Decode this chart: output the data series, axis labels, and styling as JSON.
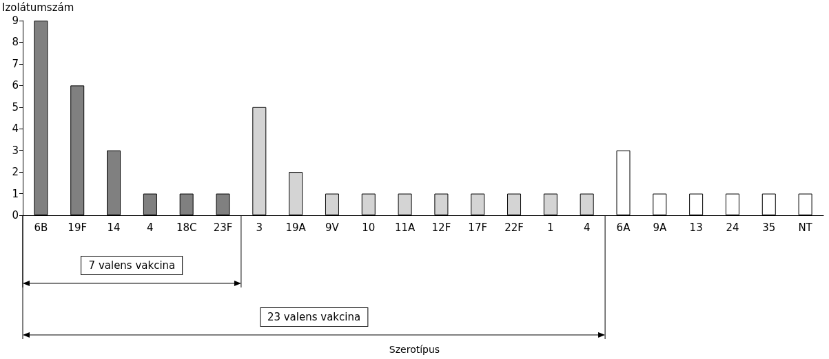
{
  "chart_data": {
    "type": "bar",
    "ylabel": "Izolátumszám",
    "categories": [
      "6B",
      "19F",
      "14",
      "4",
      "18C",
      "23F",
      "3",
      "19A",
      "9V",
      "10",
      "11A",
      "12F",
      "17F",
      "22F",
      "1",
      "4",
      "6A",
      "9A",
      "13",
      "24",
      "35",
      "NT"
    ],
    "values": [
      9,
      6,
      3,
      1,
      1,
      1,
      5,
      2,
      1,
      1,
      1,
      1,
      1,
      1,
      1,
      1,
      3,
      1,
      1,
      1,
      1,
      1
    ],
    "colors": [
      "#808080",
      "#808080",
      "#808080",
      "#808080",
      "#808080",
      "#808080",
      "#d4d4d4",
      "#d4d4d4",
      "#d4d4d4",
      "#d4d4d4",
      "#d4d4d4",
      "#d4d4d4",
      "#d4d4d4",
      "#d4d4d4",
      "#d4d4d4",
      "#d4d4d4",
      "#ffffff",
      "#ffffff",
      "#ffffff",
      "#ffffff",
      "#ffffff",
      "#ffffff"
    ],
    "ylim": [
      0,
      9
    ],
    "yticks": [
      0,
      1,
      2,
      3,
      4,
      5,
      6,
      7,
      8,
      9
    ],
    "grid": false,
    "annotations": [
      "7 valens vakcina",
      "23 valens vakcina",
      "Szerotípus"
    ]
  }
}
